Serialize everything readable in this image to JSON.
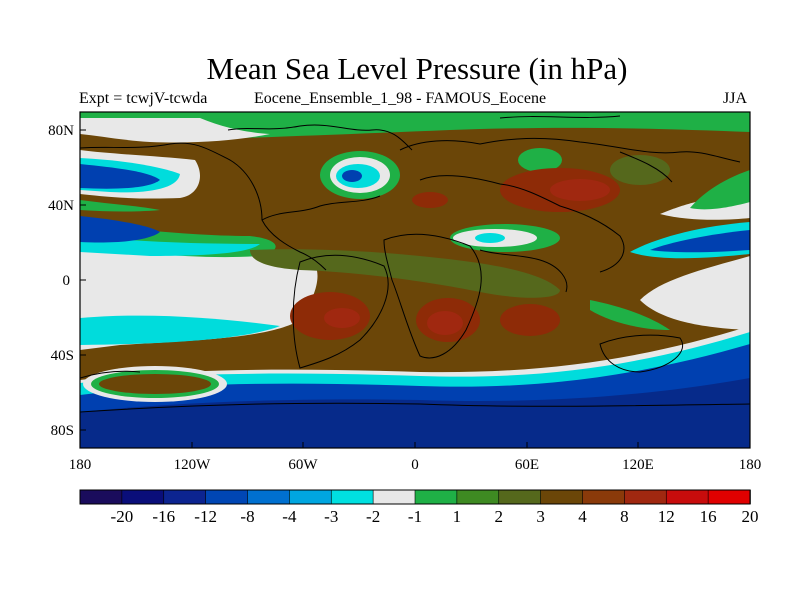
{
  "title": "Mean Sea Level Pressure (in hPa)",
  "left_label": "Expt = tcwjV-tcwda",
  "center_label": "Eocene_Ensemble_1_98 - FAMOUS_Eocene",
  "right_label": "JJA",
  "map": {
    "lat_ticks": [
      "80N",
      "40N",
      "0",
      "40S",
      "80S"
    ],
    "lon_ticks": [
      "180",
      "120W",
      "60W",
      "0",
      "60E",
      "120E",
      "180"
    ],
    "colors": {
      "brown": "#6b4608",
      "dark_red": "#8e2b07",
      "white": "#e8e8e8",
      "green": "#1fb046",
      "cyan": "#00dcdc",
      "blue": "#0040b0",
      "navy": "#062a8a"
    }
  },
  "colorbar": {
    "colors": [
      "#1a0c5c",
      "#0a0e7a",
      "#0c2490",
      "#0046b4",
      "#0070d0",
      "#00a6e0",
      "#00e0e0",
      "#e8e8e8",
      "#1fb046",
      "#3e8a22",
      "#55681c",
      "#6b4608",
      "#8a3a0a",
      "#a02810",
      "#c80c0c",
      "#e00000"
    ],
    "labels": [
      "-20",
      "-16",
      "-12",
      "-8",
      "-4",
      "-3",
      "-2",
      "-1",
      "1",
      "2",
      "3",
      "4",
      "8",
      "12",
      "16",
      "20"
    ]
  }
}
